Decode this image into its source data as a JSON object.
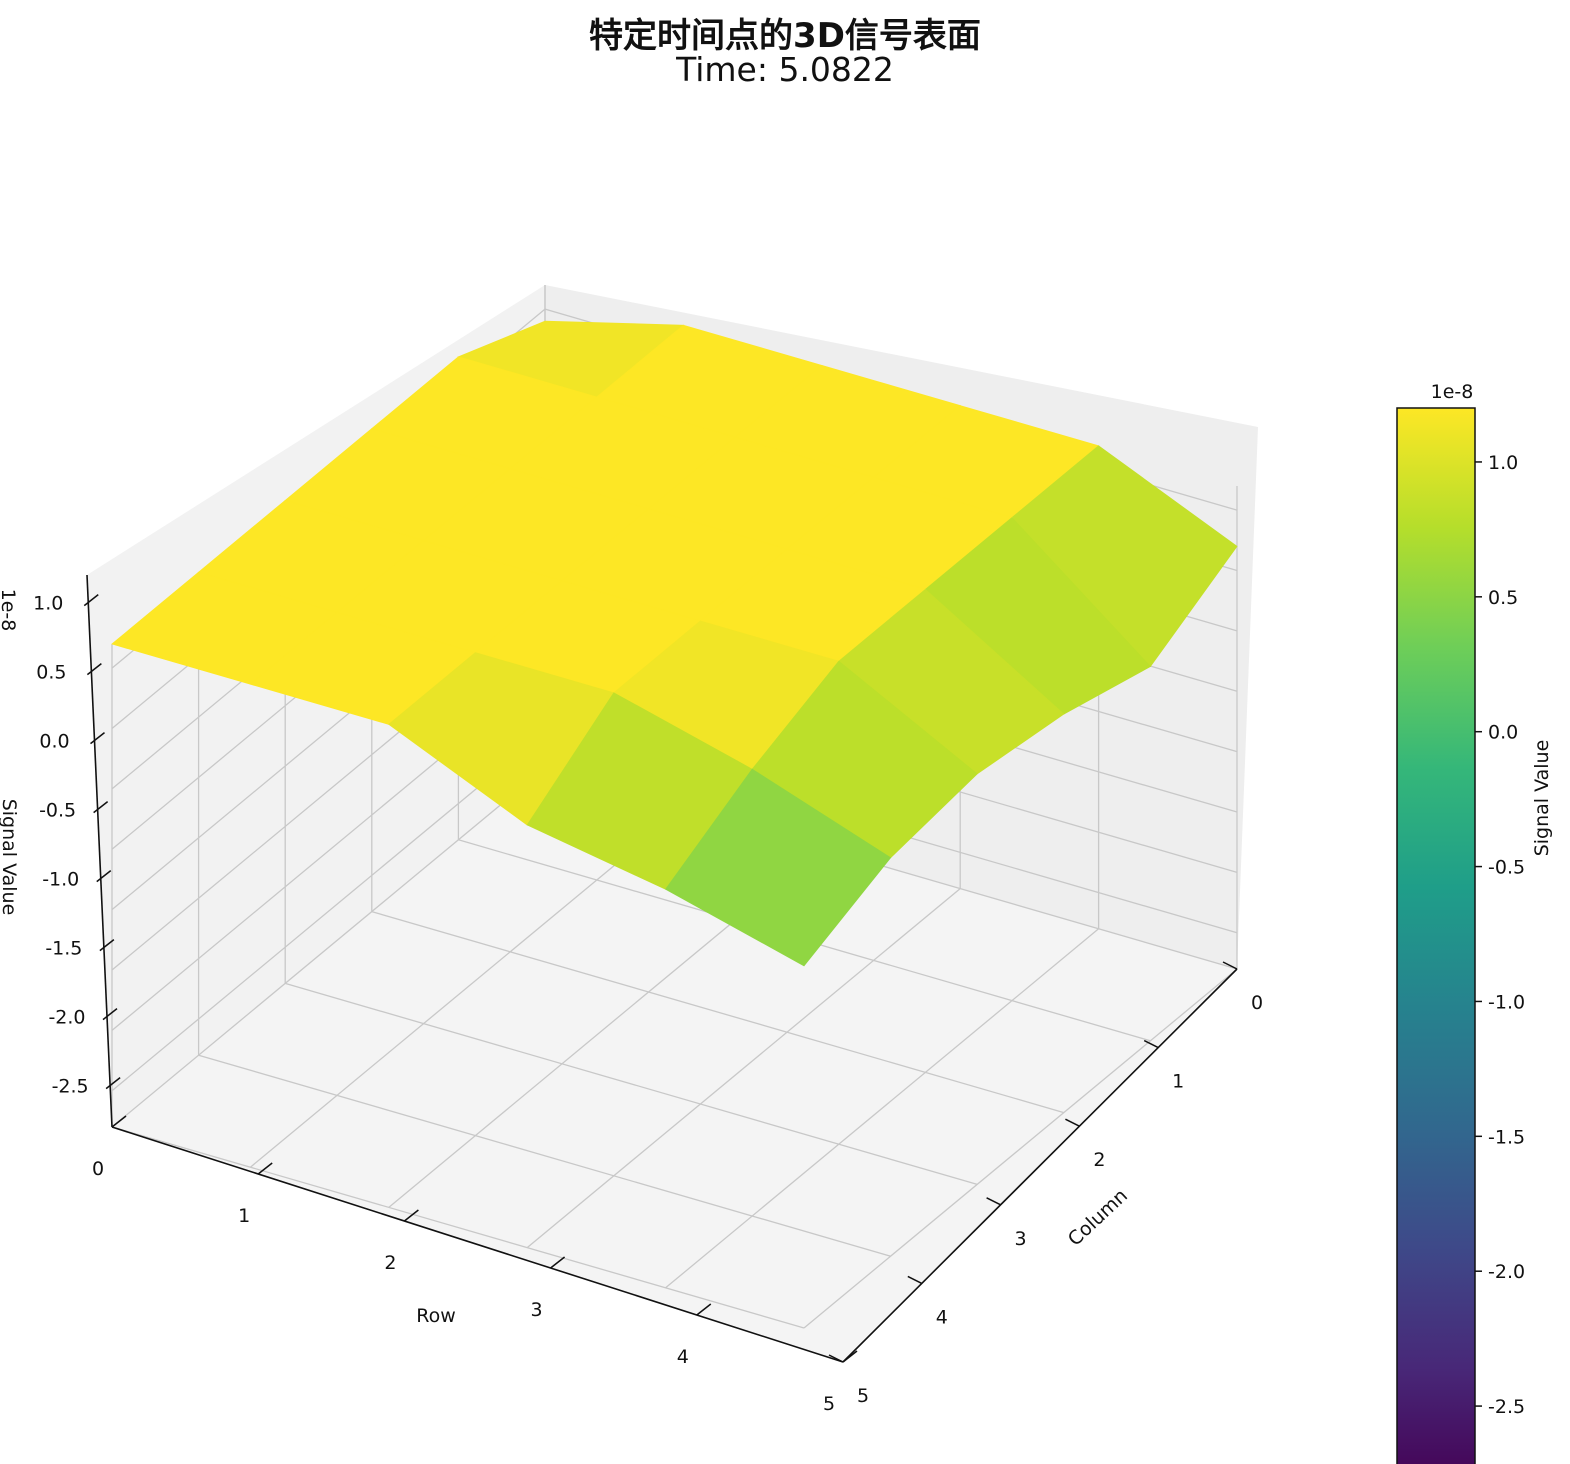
{
  "chart_data": {
    "type": "surface3d",
    "title": "特定时间点的3D信号表面",
    "subtitle": "Time: 5.0822",
    "xlabel": "Row",
    "ylabel": "Column",
    "zlabel": "Signal Value",
    "z_offset_label": "1e-8",
    "row_ticks": [
      "0",
      "1",
      "2",
      "3",
      "4",
      "5"
    ],
    "column_ticks": [
      "0",
      "1",
      "2",
      "3",
      "4",
      "5"
    ],
    "z_ticks": [
      "-2.5",
      "-2.0",
      "-1.5",
      "-1.0",
      "-0.5",
      "0.0",
      "0.5",
      "1.0"
    ],
    "z_range": [
      -2.8,
      1.2
    ],
    "colorbar": {
      "label": "Signal Value",
      "offset_label": "1e-8",
      "range": [
        -2.8,
        1.2
      ],
      "ticks": [
        "-2.5",
        "-2.0",
        "-1.5",
        "-1.0",
        "-0.5",
        "0.0",
        "0.5",
        "1.0"
      ],
      "colormap": "viridis"
    },
    "grid": true,
    "z_values_1e-8": [
      [
        0.9,
        1.2,
        1.2,
        1.2,
        1.2,
        0.7
      ],
      [
        1.2,
        1.2,
        1.2,
        1.2,
        1.2,
        0.3
      ],
      [
        1.2,
        1.2,
        1.2,
        1.2,
        1.2,
        0.5
      ],
      [
        1.2,
        1.2,
        1.2,
        1.2,
        1.2,
        0.6
      ],
      [
        1.2,
        1.2,
        1.2,
        1.2,
        0.9,
        0.5
      ],
      [
        1.2,
        1.2,
        1.2,
        0.7,
        0.5,
        0.2
      ]
    ]
  }
}
